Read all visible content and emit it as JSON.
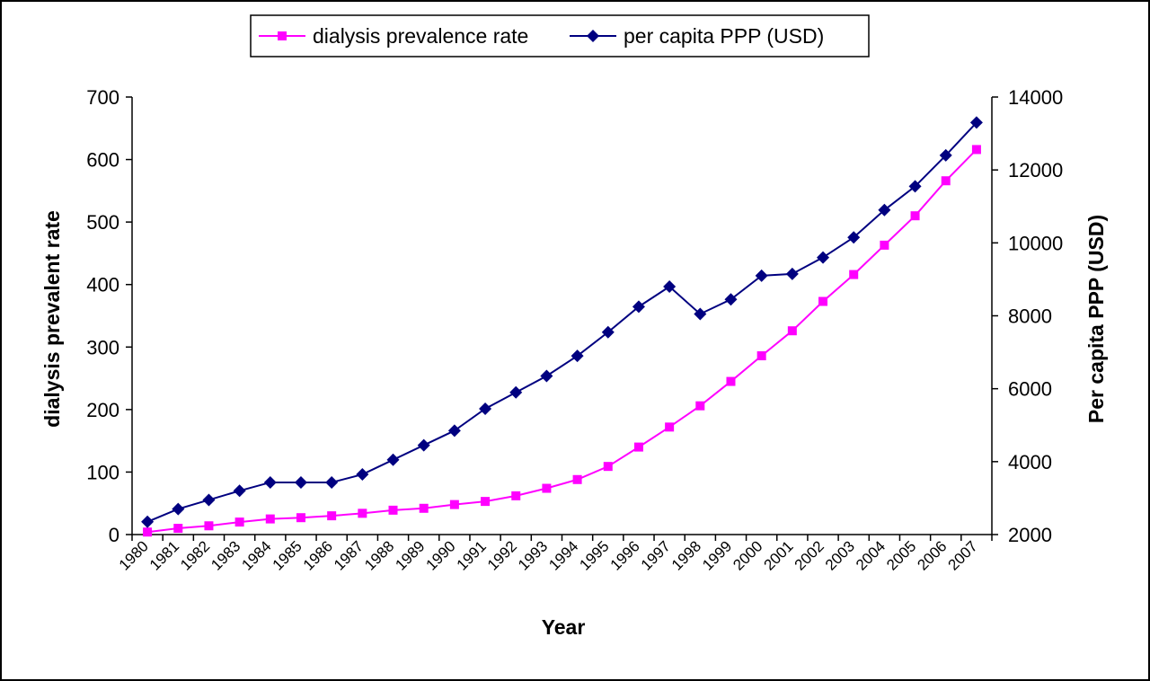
{
  "chart_data": {
    "type": "line",
    "x": [
      "1980",
      "1981",
      "1982",
      "1983",
      "1984",
      "1985",
      "1986",
      "1987",
      "1988",
      "1989",
      "1990",
      "1991",
      "1992",
      "1993",
      "1994",
      "1995",
      "1996",
      "1997",
      "1998",
      "1999",
      "2000",
      "2001",
      "2002",
      "2003",
      "2004",
      "2005",
      "2006",
      "2007"
    ],
    "series": [
      {
        "name": "dialysis prevalence rate",
        "axis": "left",
        "color": "#ff00ff",
        "marker": "square",
        "values": [
          4,
          10,
          14,
          20,
          25,
          27,
          30,
          34,
          39,
          42,
          48,
          53,
          62,
          74,
          88,
          109,
          140,
          172,
          206,
          245,
          286,
          326,
          373,
          416,
          463,
          510,
          566,
          616
        ]
      },
      {
        "name": "per capita PPP (USD)",
        "axis": "right",
        "color": "#000080",
        "marker": "diamond",
        "values": [
          2350,
          2700,
          2950,
          3200,
          3430,
          3430,
          3430,
          3650,
          4050,
          4450,
          4850,
          5450,
          5900,
          6350,
          6900,
          7550,
          8250,
          8800,
          8050,
          8450,
          9100,
          9150,
          9600,
          10150,
          10900,
          11550,
          12400,
          13300
        ]
      }
    ],
    "xlabel": "Year",
    "ylabel": "dialysis prevalent rate",
    "y2label": "Per capita PPP (USD)",
    "ylim": [
      0,
      700
    ],
    "y2lim": [
      2000,
      14000
    ],
    "yticks": [
      "0",
      "100",
      "200",
      "300",
      "400",
      "500",
      "600",
      "700"
    ],
    "y2ticks": [
      "2000",
      "4000",
      "6000",
      "8000",
      "10000",
      "12000",
      "14000"
    ],
    "grid": false,
    "legend": "top"
  }
}
